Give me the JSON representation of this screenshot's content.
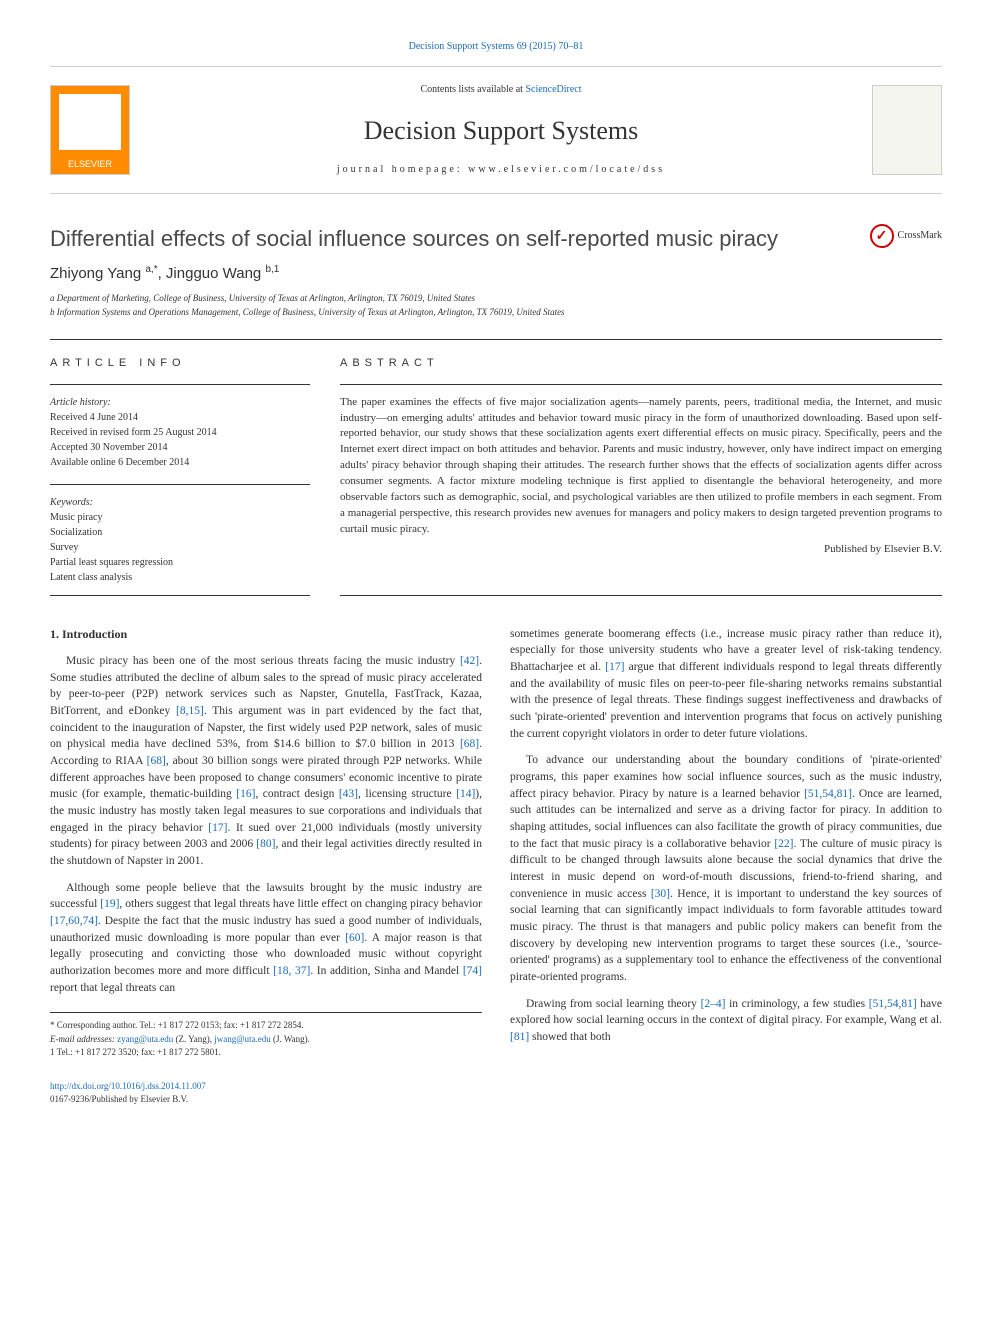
{
  "header": {
    "citation_link_text": "Decision Support Systems 69 (2015) 70–81",
    "contents_prefix": "Contents lists available at ",
    "contents_link": "ScienceDirect",
    "journal_name": "Decision Support Systems",
    "homepage_label": "journal homepage: www.elsevier.com/locate/dss",
    "elsevier_label": "ELSEVIER"
  },
  "article": {
    "title": "Differential effects of social influence sources on self-reported music piracy",
    "crossmark_label": "CrossMark",
    "authors_html": "Zhiyong Yang <sup>a,*</sup>, Jingguo Wang <sup>b,1</sup>",
    "affiliations": [
      "a Department of Marketing, College of Business, University of Texas at Arlington, Arlington, TX 76019, United States",
      "b Information Systems and Operations Management, College of Business, University of Texas at Arlington, Arlington, TX 76019, United States"
    ]
  },
  "info": {
    "heading": "ARTICLE INFO",
    "history_label": "Article history:",
    "history": [
      "Received 4 June 2014",
      "Received in revised form 25 August 2014",
      "Accepted 30 November 2014",
      "Available online 6 December 2014"
    ],
    "keywords_label": "Keywords:",
    "keywords": [
      "Music piracy",
      "Socialization",
      "Survey",
      "Partial least squares regression",
      "Latent class analysis"
    ]
  },
  "abstract": {
    "heading": "ABSTRACT",
    "text": "The paper examines the effects of five major socialization agents—namely parents, peers, traditional media, the Internet, and music industry—on emerging adults' attitudes and behavior toward music piracy in the form of unauthorized downloading. Based upon self-reported behavior, our study shows that these socialization agents exert differential effects on music piracy. Specifically, peers and the Internet exert direct impact on both attitudes and behavior. Parents and music industry, however, only have indirect impact on emerging adults' piracy behavior through shaping their attitudes. The research further shows that the effects of socialization agents differ across consumer segments. A factor mixture modeling technique is first applied to disentangle the behavioral heterogeneity, and more observable factors such as demographic, social, and psychological variables are then utilized to profile members in each segment. From a managerial perspective, this research provides new avenues for managers and policy makers to design targeted prevention programs to curtail music piracy.",
    "publisher": "Published by Elsevier B.V."
  },
  "body": {
    "section_number": "1.",
    "section_title": "Introduction",
    "left_paragraphs": [
      "Music piracy has been one of the most serious threats facing the music industry <span class=\"ref\">[42]</span>. Some studies attributed the decline of album sales to the spread of music piracy accelerated by peer-to-peer (P2P) network services such as Napster, Gnutella, FastTrack, Kazaa, BitTorrent, and eDonkey <span class=\"ref\">[8,15]</span>. This argument was in part evidenced by the fact that, coincident to the inauguration of Napster, the first widely used P2P network, sales of music on physical media have declined 53%, from $14.6 billion to $7.0 billion in 2013 <span class=\"ref\">[68]</span>. According to RIAA <span class=\"ref\">[68]</span>, about 30 billion songs were pirated through P2P networks. While different approaches have been proposed to change consumers' economic incentive to pirate music (for example, thematic-building <span class=\"ref\">[16]</span>, contract design <span class=\"ref\">[43]</span>, licensing structure <span class=\"ref\">[14]</span>), the music industry has mostly taken legal measures to sue corporations and individuals that engaged in the piracy behavior <span class=\"ref\">[17]</span>. It sued over 21,000 individuals (mostly university students) for piracy between 2003 and 2006 <span class=\"ref\">[80]</span>, and their legal activities directly resulted in the shutdown of Napster in 2001.",
      "Although some people believe that the lawsuits brought by the music industry are successful <span class=\"ref\">[19]</span>, others suggest that legal threats have little effect on changing piracy behavior <span class=\"ref\">[17,60,74]</span>. Despite the fact that the music industry has sued a good number of individuals, unauthorized music downloading is more popular than ever <span class=\"ref\">[60]</span>. A major reason is that legally prosecuting and convicting those who downloaded music without copyright authorization becomes more and more difficult <span class=\"ref\">[18, 37]</span>. In addition, Sinha and Mandel <span class=\"ref\">[74]</span> report that legal threats can"
    ],
    "right_paragraphs": [
      "sometimes generate boomerang effects (i.e., increase music piracy rather than reduce it), especially for those university students who have a greater level of risk-taking tendency. Bhattacharjee et al. <span class=\"ref\">[17]</span> argue that different individuals respond to legal threats differently and the availability of music files on peer-to-peer file-sharing networks remains substantial with the presence of legal threats. These findings suggest ineffectiveness and drawbacks of such 'pirate-oriented' prevention and intervention programs that focus on actively punishing the current copyright violators in order to deter future violations.",
      "To advance our understanding about the boundary conditions of 'pirate-oriented' programs, this paper examines how social influence sources, such as the music industry, affect piracy behavior. Piracy by nature is a learned behavior <span class=\"ref\">[51,54,81]</span>. Once are learned, such attitudes can be internalized and serve as a driving factor for piracy. In addition to shaping attitudes, social influences can also facilitate the growth of piracy communities, due to the fact that music piracy is a collaborative behavior <span class=\"ref\">[22]</span>. The culture of music piracy is difficult to be changed through lawsuits alone because the social dynamics that drive the interest in music depend on word-of-mouth discussions, friend-to-friend sharing, and convenience in music access <span class=\"ref\">[30]</span>. Hence, it is important to understand the key sources of social learning that can significantly impact individuals to form favorable attitudes toward music piracy. The thrust is that managers and public policy makers can benefit from the discovery by developing new intervention programs to target these sources (i.e., 'source-oriented' programs) as a supplementary tool to enhance the effectiveness of the conventional pirate-oriented programs.",
      "Drawing from social learning theory <span class=\"ref\">[2–4]</span> in criminology, a few studies <span class=\"ref\">[51,54,81]</span> have explored how social learning occurs in the context of digital piracy. For example, Wang et al. <span class=\"ref\">[81]</span> showed that both"
    ]
  },
  "footnotes": {
    "corresponding": "* Corresponding author. Tel.: +1 817 272 0153; fax: +1 817 272 2854.",
    "emails_label": "E-mail addresses:",
    "email1": "zyang@uta.edu",
    "email1_name": "(Z. Yang),",
    "email2": "jwang@uta.edu",
    "email2_name": "(J. Wang).",
    "note1": "1 Tel.: +1 817 272 3520; fax: +1 817 272 5801."
  },
  "doi": {
    "link": "http://dx.doi.org/10.1016/j.dss.2014.11.007",
    "issn_line": "0167-9236/Published by Elsevier B.V."
  },
  "colors": {
    "link_color": "#1a6bb5",
    "text_color": "#333333",
    "rule_color": "#333333",
    "orange": "#ff8c00"
  },
  "typography": {
    "title_fontsize": 22,
    "journal_name_fontsize": 26,
    "body_fontsize": 11.5,
    "abstract_fontsize": 11,
    "footnote_fontsize": 9
  }
}
